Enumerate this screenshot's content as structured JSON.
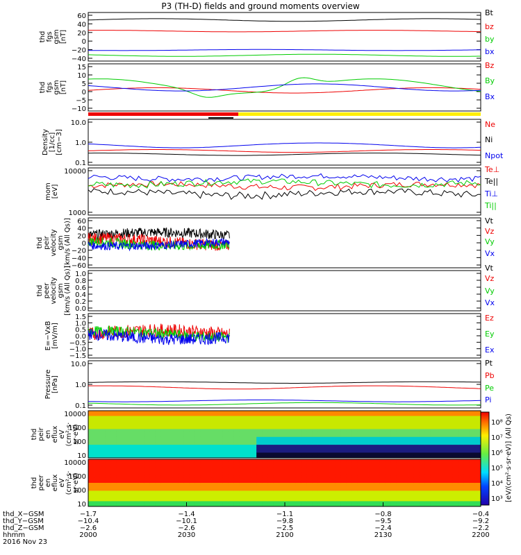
{
  "title": "P3 (TH-D) fields and ground moments overview",
  "colors": {
    "black": "#000000",
    "red": "#ee0000",
    "green": "#00cc00",
    "blue": "#0000ee",
    "yellow": "#ffee00"
  },
  "chart_data": [
    {
      "type": "line",
      "ylabel": [
        "thd",
        "fgs",
        "gsm",
        "[nT]"
      ],
      "yticks": [
        "60",
        "40",
        "20",
        "0",
        "−20",
        "−40"
      ],
      "ylim": [
        -45,
        65
      ],
      "log": false,
      "series": [
        {
          "name": "Bt",
          "color": "black",
          "level": 48,
          "amp": 5
        },
        {
          "name": "bz",
          "color": "red",
          "level": 23,
          "amp": 3
        },
        {
          "name": "by",
          "color": "green",
          "level": -32,
          "amp": 4
        },
        {
          "name": "bx",
          "color": "blue",
          "level": -20,
          "amp": 2
        }
      ]
    },
    {
      "type": "line",
      "ylabel": [
        "thd",
        "fgs",
        "gsm",
        "[nT]"
      ],
      "yticks": [
        "15",
        "10",
        "5",
        "0",
        "−5",
        "−10"
      ],
      "ylim": [
        -14,
        18
      ],
      "log": false,
      "series": [
        {
          "name": "Bz",
          "color": "red",
          "level": 0,
          "amp": 3
        },
        {
          "name": "By",
          "color": "green",
          "level": 3,
          "amp": 8
        },
        {
          "name": "Bx",
          "color": "blue",
          "level": 2,
          "amp": 4
        }
      ]
    },
    {
      "type": "line",
      "ylabel": [
        "Density",
        "[1/cc]",
        "[cm−3]"
      ],
      "yticks": [
        "10.0",
        "1.0",
        "0.1"
      ],
      "ylim": [
        0.1,
        10
      ],
      "log": true,
      "series": [
        {
          "name": "Ne",
          "color": "red",
          "level": 0.42,
          "amp": 0.1
        },
        {
          "name": "Ni",
          "color": "black",
          "level": 0.3,
          "amp": 0.06
        },
        {
          "name": "Npot",
          "color": "blue",
          "level": 0.75,
          "amp": 0.3
        }
      ]
    },
    {
      "type": "line",
      "ylabel": [
        "mom",
        "[eV]"
      ],
      "yticks": [
        "10000",
        "1000"
      ],
      "ylim": [
        1000,
        10000
      ],
      "log": true,
      "series": [
        {
          "name": "Te⊥",
          "color": "red",
          "level": 4200,
          "amp": 600
        },
        {
          "name": "Te||",
          "color": "black",
          "level": 2900,
          "amp": 500
        },
        {
          "name": "Ti⊥",
          "color": "blue",
          "level": 6300,
          "amp": 800
        },
        {
          "name": "Ti||",
          "color": "green",
          "level": 4800,
          "amp": 700
        }
      ]
    },
    {
      "type": "line",
      "ylabel": [
        "thd",
        "peir",
        "velocity",
        "gsm",
        "[km/s (All Qs)]"
      ],
      "yticks": [
        "60",
        "40",
        "20",
        "0",
        "−20",
        "−40",
        "−60"
      ],
      "ylim": [
        -60,
        60
      ],
      "log": false,
      "end_fraction": 0.36,
      "series": [
        {
          "name": "Vt",
          "color": "black",
          "level": 18,
          "amp": 12
        },
        {
          "name": "Vz",
          "color": "red",
          "level": 2,
          "amp": 14
        },
        {
          "name": "Vy",
          "color": "green",
          "level": 0,
          "amp": 12
        },
        {
          "name": "Vx",
          "color": "blue",
          "level": -2,
          "amp": 10
        }
      ]
    },
    {
      "type": "line",
      "ylabel": [
        "thd",
        "peer",
        "velocity",
        "gsm",
        "[km/s (All Qs)]"
      ],
      "yticks": [
        "1.0",
        "0.8",
        "0.6",
        "0.4",
        "0.2",
        "0.0"
      ],
      "ylim": [
        0,
        1
      ],
      "log": false,
      "series": [
        {
          "name": "Vt",
          "color": "black"
        },
        {
          "name": "Vz",
          "color": "red"
        },
        {
          "name": "Vy",
          "color": "green"
        },
        {
          "name": "Vx",
          "color": "blue"
        }
      ]
    },
    {
      "type": "line",
      "ylabel": [
        "E=−VxB",
        "[mV/m]"
      ],
      "yticks": [
        "1.5",
        "1.0",
        "0.5",
        "0.0",
        "−0.5",
        "−1.0",
        "−1.5"
      ],
      "ylim": [
        -1.5,
        1.5
      ],
      "log": false,
      "end_fraction": 0.36,
      "series": [
        {
          "name": "Ez",
          "color": "red",
          "level": 0.1,
          "amp": 0.45
        },
        {
          "name": "Ey",
          "color": "green",
          "level": 0.1,
          "amp": 0.35
        },
        {
          "name": "Ex",
          "color": "blue",
          "level": 0.0,
          "amp": 0.4
        }
      ]
    },
    {
      "type": "line",
      "ylabel": [
        "Pressure",
        "[nPa]"
      ],
      "yticks": [
        "10.0",
        "1.0",
        "0.1"
      ],
      "ylim": [
        0.1,
        10
      ],
      "log": true,
      "series": [
        {
          "name": "Pt",
          "color": "black",
          "level": 1.2,
          "amp": 0.15
        },
        {
          "name": "Pb",
          "color": "red",
          "level": 0.75,
          "amp": 0.2
        },
        {
          "name": "Pe",
          "color": "green",
          "level": 0.15,
          "amp": 0.03
        },
        {
          "name": "Pi",
          "color": "blue",
          "level": 0.2,
          "amp": 0.03
        }
      ]
    },
    {
      "type": "heatmap",
      "ylabel": [
        "thd",
        "peir",
        "en",
        "eflux",
        "eV",
        "(cm²·s·",
        "sr·eV)"
      ],
      "yticks": [
        "10000",
        "1000",
        "100",
        "10"
      ],
      "ylim": [
        7,
        20000
      ],
      "log": true
    },
    {
      "type": "heatmap",
      "ylabel": [
        "thd",
        "peer",
        "en",
        "eflux",
        "eV",
        "(cm²·s·",
        "sr·eV)"
      ],
      "yticks": [
        "10000",
        "1000",
        "100",
        "10"
      ],
      "ylim": [
        7,
        20000
      ],
      "log": true
    }
  ],
  "colorbar": {
    "labels": [
      "10⁸",
      "10⁷",
      "10⁶",
      "10⁵",
      "10⁴",
      "10³"
    ],
    "title": "[eV/(cm²·s·sr·eV)] (All Qs)"
  },
  "xaxis": {
    "rows": [
      {
        "label": "thd_X−GSM",
        "values": [
          "−1.7",
          "−1.4",
          "−1.1",
          "−0.8",
          "−0.4"
        ]
      },
      {
        "label": "thd_Y−GSM",
        "values": [
          "−10.4",
          "−10.1",
          "−9.8",
          "−9.5",
          "−9.2"
        ]
      },
      {
        "label": "thd_Z−GSM",
        "values": [
          "−2.6",
          "−2.6",
          "−2.5",
          "−2.4",
          "−2.2"
        ]
      },
      {
        "label": "hhmm",
        "values": [
          "2000",
          "2030",
          "2100",
          "2130",
          "2200"
        ]
      }
    ],
    "date": "2016 Nov 23"
  }
}
